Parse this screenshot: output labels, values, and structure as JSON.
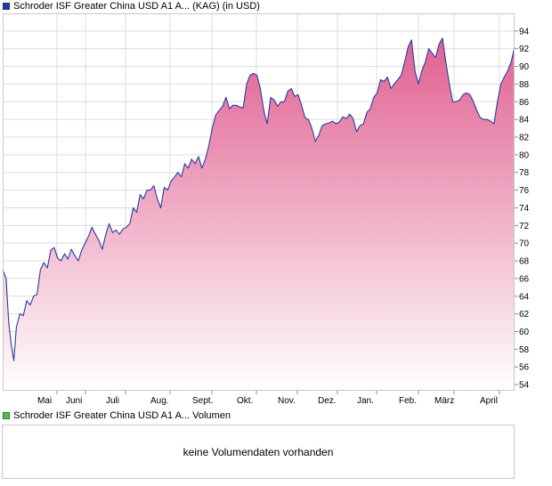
{
  "price_legend": {
    "label": "Schroder ISF Greater China USD A1 A... (KAG) (in USD)",
    "color": "#1f3f9f"
  },
  "volume_legend": {
    "label": "Schroder ISF Greater China USD A1 A... Volumen",
    "color": "#55bb55"
  },
  "volume_panel": {
    "message": "keine Volumendaten vorhanden"
  },
  "colors": {
    "line": "#2b3aa3",
    "fill_top": "#e06090",
    "fill_bottom": "#ffffff",
    "grid": "#dcdcdc",
    "border": "#c8c8c8"
  },
  "chart_data": {
    "type": "area",
    "title": "Schroder ISF Greater China USD A1 A... (KAG) (in USD)",
    "xlabel": "",
    "ylabel": "",
    "ylim": [
      53.3,
      96
    ],
    "y_ticks": [
      54,
      56,
      58,
      60,
      62,
      64,
      66,
      68,
      70,
      72,
      74,
      76,
      78,
      80,
      82,
      84,
      86,
      88,
      90,
      92,
      94
    ],
    "x_ticks": [
      "Mai",
      "Juni",
      "Juli",
      "Aug.",
      "Sept.",
      "Okt.",
      "Nov.",
      "Dez.",
      "Jan.",
      "Feb.",
      "März",
      "April"
    ],
    "grid": true,
    "axis_side": "right",
    "series": [
      {
        "values": [
          [
            0.0,
            67.0
          ],
          [
            0.4,
            66.0
          ],
          [
            0.7,
            61.0
          ],
          [
            1.0,
            58.5
          ],
          [
            1.3,
            56.7
          ],
          [
            1.6,
            60.5
          ],
          [
            2.0,
            62.0
          ],
          [
            2.4,
            61.8
          ],
          [
            2.8,
            63.5
          ],
          [
            3.2,
            63.0
          ],
          [
            3.6,
            64.0
          ],
          [
            4.0,
            64.2
          ],
          [
            4.4,
            67.0
          ],
          [
            4.8,
            67.8
          ],
          [
            5.2,
            67.2
          ],
          [
            5.6,
            69.2
          ],
          [
            6.0,
            69.5
          ],
          [
            6.4,
            68.3
          ],
          [
            6.8,
            68.0
          ],
          [
            7.2,
            68.8
          ],
          [
            7.6,
            68.2
          ],
          [
            8.0,
            69.3
          ],
          [
            8.4,
            68.6
          ],
          [
            8.8,
            68.0
          ],
          [
            9.2,
            69.2
          ],
          [
            9.6,
            70.0
          ],
          [
            10.0,
            70.8
          ],
          [
            10.4,
            71.8
          ],
          [
            10.8,
            71.0
          ],
          [
            11.2,
            70.3
          ],
          [
            11.6,
            69.3
          ],
          [
            12.0,
            71.0
          ],
          [
            12.4,
            72.2
          ],
          [
            12.8,
            71.2
          ],
          [
            13.2,
            71.5
          ],
          [
            13.6,
            71.0
          ],
          [
            14.0,
            71.6
          ],
          [
            14.4,
            71.8
          ],
          [
            14.8,
            72.2
          ],
          [
            15.2,
            74.0
          ],
          [
            15.6,
            73.5
          ],
          [
            16.0,
            75.5
          ],
          [
            16.4,
            75.0
          ],
          [
            16.8,
            76.0
          ],
          [
            17.2,
            76.0
          ],
          [
            17.6,
            76.5
          ],
          [
            18.0,
            75.0
          ],
          [
            18.4,
            74.0
          ],
          [
            18.8,
            76.3
          ],
          [
            19.2,
            76.0
          ],
          [
            19.6,
            77.0
          ],
          [
            20.0,
            77.5
          ],
          [
            20.4,
            78.0
          ],
          [
            20.8,
            77.5
          ],
          [
            21.2,
            79.0
          ],
          [
            21.6,
            78.5
          ],
          [
            22.0,
            79.5
          ],
          [
            22.4,
            79.0
          ],
          [
            22.8,
            79.8
          ],
          [
            23.2,
            78.5
          ],
          [
            23.6,
            79.5
          ],
          [
            24.0,
            81.0
          ],
          [
            24.4,
            83.0
          ],
          [
            24.8,
            84.5
          ],
          [
            25.2,
            85.0
          ],
          [
            25.6,
            85.5
          ],
          [
            26.0,
            86.5
          ],
          [
            26.4,
            85.2
          ],
          [
            26.8,
            85.6
          ],
          [
            27.2,
            85.6
          ],
          [
            27.6,
            85.4
          ],
          [
            28.0,
            85.3
          ],
          [
            28.4,
            88.0
          ],
          [
            28.8,
            89.0
          ],
          [
            29.2,
            89.2
          ],
          [
            29.6,
            89.0
          ],
          [
            30.0,
            87.5
          ],
          [
            30.4,
            85.0
          ],
          [
            30.8,
            83.5
          ],
          [
            31.2,
            86.5
          ],
          [
            31.6,
            86.2
          ],
          [
            32.0,
            85.5
          ],
          [
            32.4,
            86.0
          ],
          [
            32.8,
            86.0
          ],
          [
            33.2,
            87.2
          ],
          [
            33.6,
            87.5
          ],
          [
            34.0,
            86.6
          ],
          [
            34.4,
            86.8
          ],
          [
            34.8,
            85.6
          ],
          [
            35.2,
            84.2
          ],
          [
            35.6,
            84.0
          ],
          [
            36.0,
            83.0
          ],
          [
            36.4,
            81.5
          ],
          [
            36.8,
            82.2
          ],
          [
            37.2,
            83.3
          ],
          [
            37.6,
            83.5
          ],
          [
            38.0,
            83.6
          ],
          [
            38.4,
            83.8
          ],
          [
            38.8,
            83.5
          ],
          [
            39.2,
            83.7
          ],
          [
            39.6,
            84.3
          ],
          [
            40.0,
            84.1
          ],
          [
            40.4,
            84.6
          ],
          [
            40.8,
            84.1
          ],
          [
            41.2,
            82.6
          ],
          [
            41.6,
            83.3
          ],
          [
            42.0,
            83.5
          ],
          [
            42.4,
            84.8
          ],
          [
            42.8,
            85.2
          ],
          [
            43.2,
            86.5
          ],
          [
            43.6,
            87.0
          ],
          [
            44.0,
            88.5
          ],
          [
            44.4,
            88.3
          ],
          [
            44.8,
            88.8
          ],
          [
            45.2,
            87.5
          ],
          [
            45.6,
            88.0
          ],
          [
            46.0,
            88.5
          ],
          [
            46.4,
            89.0
          ],
          [
            46.8,
            90.5
          ],
          [
            47.2,
            92.2
          ],
          [
            47.6,
            93.0
          ],
          [
            48.0,
            89.5
          ],
          [
            48.4,
            88.0
          ],
          [
            48.8,
            89.5
          ],
          [
            49.2,
            90.5
          ],
          [
            49.6,
            92.0
          ],
          [
            50.0,
            91.5
          ],
          [
            50.4,
            91.0
          ],
          [
            50.8,
            92.5
          ],
          [
            51.2,
            93.2
          ],
          [
            51.6,
            90.5
          ],
          [
            52.0,
            88.0
          ],
          [
            52.4,
            86.0
          ],
          [
            52.8,
            86.0
          ],
          [
            53.2,
            86.2
          ],
          [
            53.6,
            86.8
          ],
          [
            54.0,
            87.0
          ],
          [
            54.4,
            86.8
          ],
          [
            54.8,
            86.0
          ],
          [
            55.2,
            85.0
          ],
          [
            55.6,
            84.2
          ],
          [
            56.0,
            84.0
          ],
          [
            56.4,
            84.0
          ],
          [
            56.8,
            83.8
          ],
          [
            57.2,
            83.5
          ],
          [
            57.6,
            86.0
          ],
          [
            58.0,
            88.0
          ],
          [
            58.4,
            88.8
          ],
          [
            58.8,
            89.5
          ],
          [
            59.2,
            90.5
          ],
          [
            59.6,
            92.2
          ]
        ]
      }
    ]
  }
}
